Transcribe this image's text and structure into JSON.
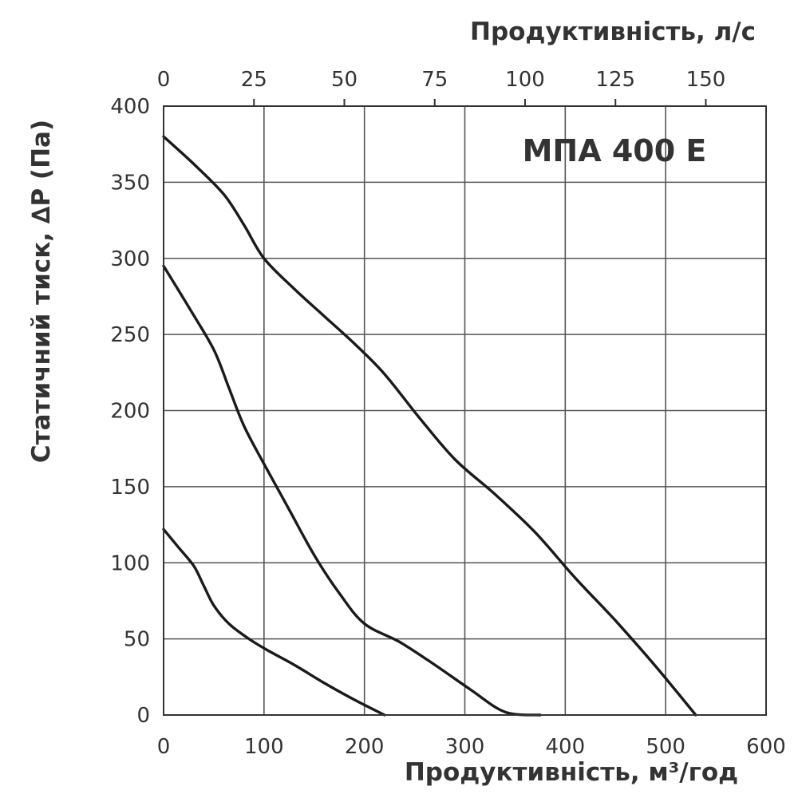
{
  "chart_data": {
    "type": "line",
    "title": "МПА 400 E",
    "xlabel": "Продуктивність, м³/год",
    "x2label": "Продуктивність, л/с",
    "ylabel": "Статичний тиск, ∆P (Па)",
    "xlim": [
      0,
      600
    ],
    "ylim": [
      0,
      400
    ],
    "x2lim": [
      0,
      166.67
    ],
    "x_ticks": [
      "0",
      "100",
      "200",
      "300",
      "400",
      "500",
      "600"
    ],
    "x2_ticks": [
      "0",
      "25",
      "50",
      "75",
      "100",
      "125",
      "150"
    ],
    "y_ticks": [
      "0",
      "50",
      "100",
      "150",
      "200",
      "250",
      "300",
      "350",
      "400"
    ],
    "grid": true,
    "series": [
      {
        "x": [
          0,
          15,
          30,
          40,
          50,
          65,
          85,
          105,
          130,
          160,
          190,
          220
        ],
        "y": [
          122,
          110,
          98,
          85,
          72,
          60,
          50,
          42,
          33,
          21,
          10,
          0
        ]
      },
      {
        "x": [
          0,
          25,
          50,
          65,
          80,
          100,
          125,
          150,
          175,
          200,
          235,
          270,
          305,
          340,
          375
        ],
        "y": [
          295,
          268,
          240,
          215,
          190,
          165,
          135,
          105,
          80,
          60,
          48,
          33,
          17,
          2,
          0
        ]
      },
      {
        "x": [
          0,
          30,
          60,
          80,
          100,
          130,
          160,
          190,
          220,
          255,
          290,
          330,
          370,
          410,
          450,
          490,
          530
        ],
        "y": [
          380,
          362,
          342,
          322,
          300,
          280,
          262,
          244,
          224,
          195,
          168,
          145,
          120,
          90,
          62,
          32,
          0
        ]
      }
    ]
  }
}
